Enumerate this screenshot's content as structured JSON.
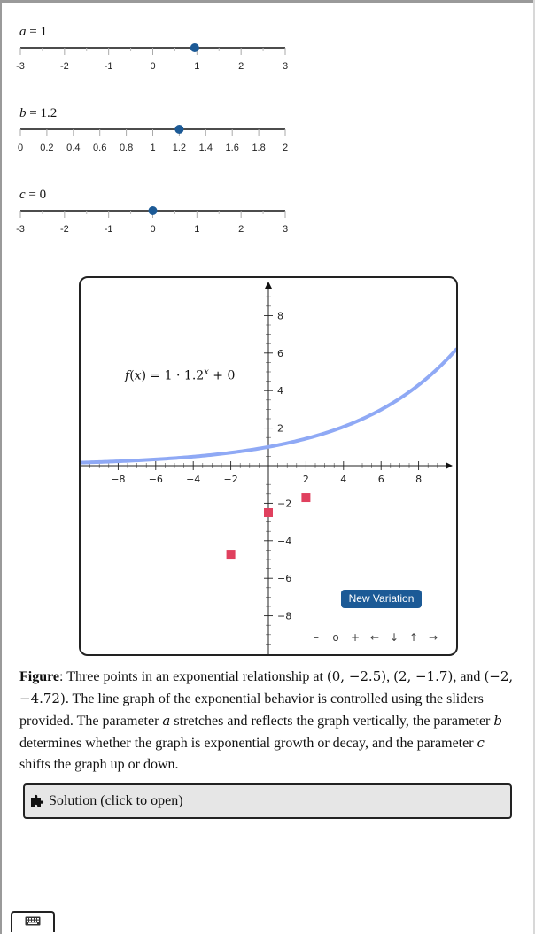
{
  "sliders": [
    {
      "var": "a",
      "sep": " = ",
      "value": "1",
      "ticks": [
        "-3",
        "-2",
        "-1",
        "0",
        "1",
        "2",
        "3"
      ],
      "min": -3,
      "max": 3,
      "current": 0.95,
      "minor_per_major": 1
    },
    {
      "var": "b",
      "sep": " = ",
      "value": "1.2",
      "ticks": [
        "0",
        "0.2",
        "0.4",
        "0.6",
        "0.8",
        "1",
        "1.2",
        "1.4",
        "1.6",
        "1.8",
        "2"
      ],
      "min": 0,
      "max": 2,
      "current": 1.2,
      "minor_per_major": 0
    },
    {
      "var": "c",
      "sep": " = ",
      "value": "0",
      "ticks": [
        "-3",
        "-2",
        "-1",
        "0",
        "1",
        "2",
        "3"
      ],
      "min": -3,
      "max": 3,
      "current": 0,
      "minor_per_major": 1
    }
  ],
  "graph": {
    "xlim": [
      -10,
      10
    ],
    "ylim": [
      -10,
      10
    ],
    "x_ticks": [
      -8,
      -6,
      -4,
      -2,
      2,
      4,
      6,
      8
    ],
    "x_tick_labels": [
      "−8",
      "−6",
      "−4",
      "−2",
      "2",
      "4",
      "6",
      "8"
    ],
    "y_ticks": [
      8,
      6,
      4,
      2,
      -2,
      -4,
      -6,
      -8
    ],
    "y_tick_labels": [
      "8",
      "6",
      "4",
      "2",
      "−2",
      "−4",
      "−6",
      "−8"
    ],
    "formula": {
      "lhs": "f",
      "arg": "x",
      "rhs": ") = 1 · 1.2",
      "exp": "x",
      "tail": " + 0"
    },
    "curve": {
      "a": 1,
      "b": 1.2,
      "c": 0,
      "color": "#8fa9f5"
    },
    "points": [
      {
        "x": 0,
        "y": -2.5
      },
      {
        "x": 2,
        "y": -1.7
      },
      {
        "x": -2,
        "y": -4.72
      }
    ],
    "point_color": "#e0405e",
    "new_variation_label": "New Variation",
    "nav": [
      "–",
      "o",
      "+",
      "←",
      "↓",
      "↑",
      "→"
    ]
  },
  "caption": {
    "lead": "Figure",
    "t1": ": Three points in an exponential relationship at ",
    "p1": "(0, −2.5)",
    "t2": ", ",
    "p2": "(2, −1.7)",
    "t3": ", and ",
    "p3": "(−2, −4.72)",
    "t4": ". The line graph of the exponential behavior is controlled using the sliders provided. The parameter ",
    "va": "a",
    "t5": " stretches and reflects the graph vertically, the parameter ",
    "vb": "b",
    "t6": " determines whether the graph is exponential growth or decay, and the parameter ",
    "vc": "c",
    "t7": " shifts the graph up or down."
  },
  "solution": {
    "label": "Solution (click to open)",
    "icon": "puzzle-icon"
  },
  "keyboard": {
    "icon": "keyboard-icon"
  },
  "colors": {
    "accent": "#1c5a96",
    "knob": "#1c5a96"
  }
}
